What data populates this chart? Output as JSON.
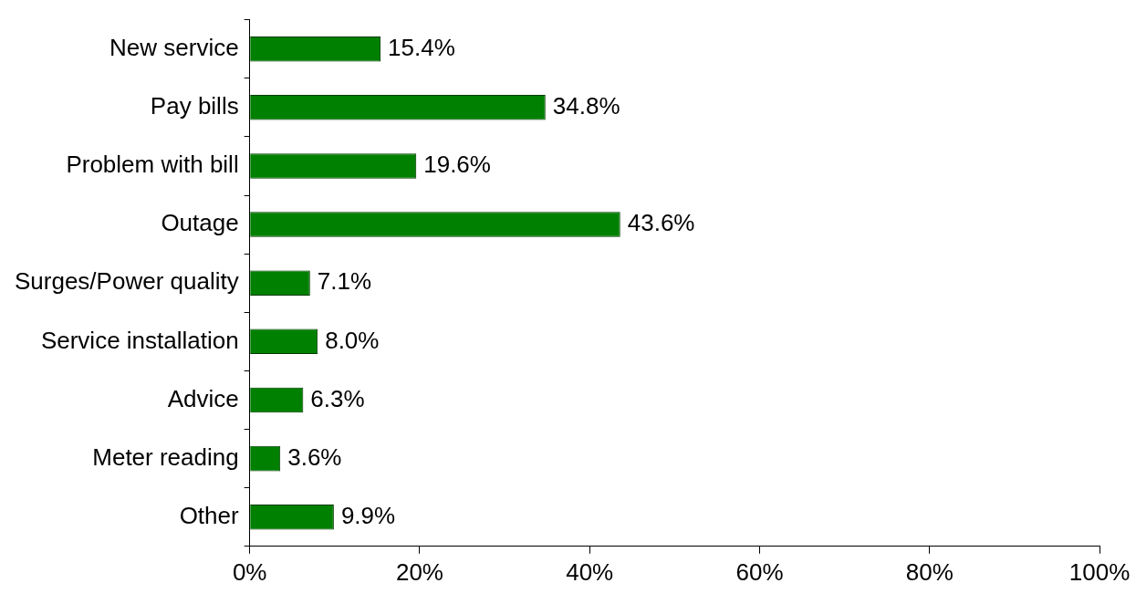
{
  "chart_data": {
    "type": "bar",
    "orientation": "horizontal",
    "categories": [
      "New service",
      "Pay bills",
      "Problem with bill",
      "Outage",
      "Surges/Power quality",
      "Service installation",
      "Advice",
      "Meter reading",
      "Other"
    ],
    "values": [
      15.4,
      34.8,
      19.6,
      43.6,
      7.1,
      8.0,
      6.3,
      3.6,
      9.9
    ],
    "value_labels": [
      "15.4%",
      "34.8%",
      "19.6%",
      "43.6%",
      "7.1%",
      "8.0%",
      "6.3%",
      "3.6%",
      "9.9%"
    ],
    "color": "#008000",
    "xlim": [
      0,
      100
    ],
    "xticks": [
      {
        "value": 0,
        "label": "0%"
      },
      {
        "value": 20,
        "label": "20%"
      },
      {
        "value": 40,
        "label": "40%"
      },
      {
        "value": 60,
        "label": "60%"
      },
      {
        "value": 80,
        "label": "80%"
      },
      {
        "value": 100,
        "label": "100%"
      }
    ],
    "grid": false,
    "legend": false
  }
}
